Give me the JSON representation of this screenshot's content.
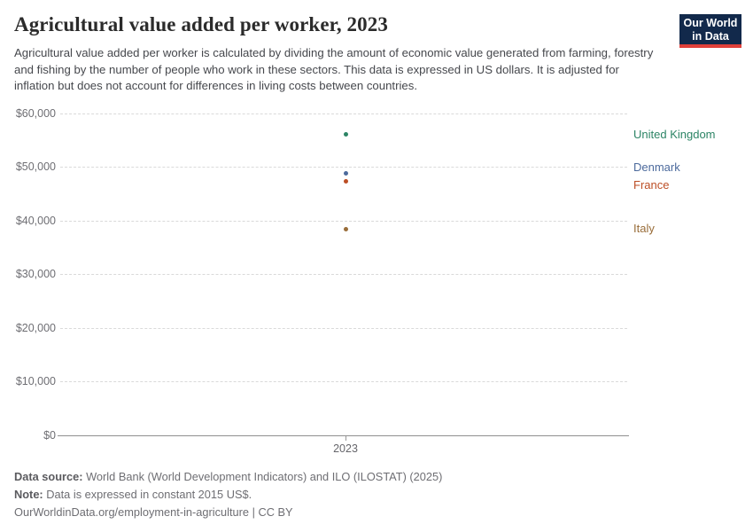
{
  "header": {
    "title": "Agricultural value added per worker, 2023",
    "subtitle": "Agricultural value added per worker is calculated by dividing the amount of economic value generated from farming, forestry and fishing by the number of people who work in these sectors. This data is expressed in US dollars. It is adjusted for inflation but does not account for differences in living costs between countries.",
    "logo": {
      "line1": "Our World",
      "line2": "in Data",
      "bg_color": "#12294B",
      "accent_color": "#E0403A"
    }
  },
  "chart_data": {
    "type": "scatter",
    "title": "Agricultural value added per worker, 2023",
    "x": [
      2023
    ],
    "x_tick_label": "2023",
    "ylim": [
      0,
      60000
    ],
    "yticks": [
      0,
      10000,
      20000,
      30000,
      40000,
      50000,
      60000
    ],
    "y_tick_prefix": "$",
    "grid": "dashed-horizontal",
    "legend_position": "right-entity-labels",
    "series": [
      {
        "name": "United Kingdom",
        "value": 56000,
        "color": "#2C8465",
        "label_dy": 0
      },
      {
        "name": "Denmark",
        "value": 48800,
        "color": "#4C6A9C",
        "label_dy": -6
      },
      {
        "name": "France",
        "value": 47300,
        "color": "#BC4E25",
        "label_dy": 5
      },
      {
        "name": "Italy",
        "value": 38400,
        "color": "#996D39",
        "label_dy": 0
      }
    ]
  },
  "footer": {
    "data_source_label": "Data source:",
    "data_source_text": " World Bank (World Development Indicators) and ILO (ILOSTAT) (2025)",
    "note_label": "Note:",
    "note_text": " Data is expressed in constant 2015 US$.",
    "link_text": "OurWorldinData.org/employment-in-agriculture | CC BY"
  }
}
